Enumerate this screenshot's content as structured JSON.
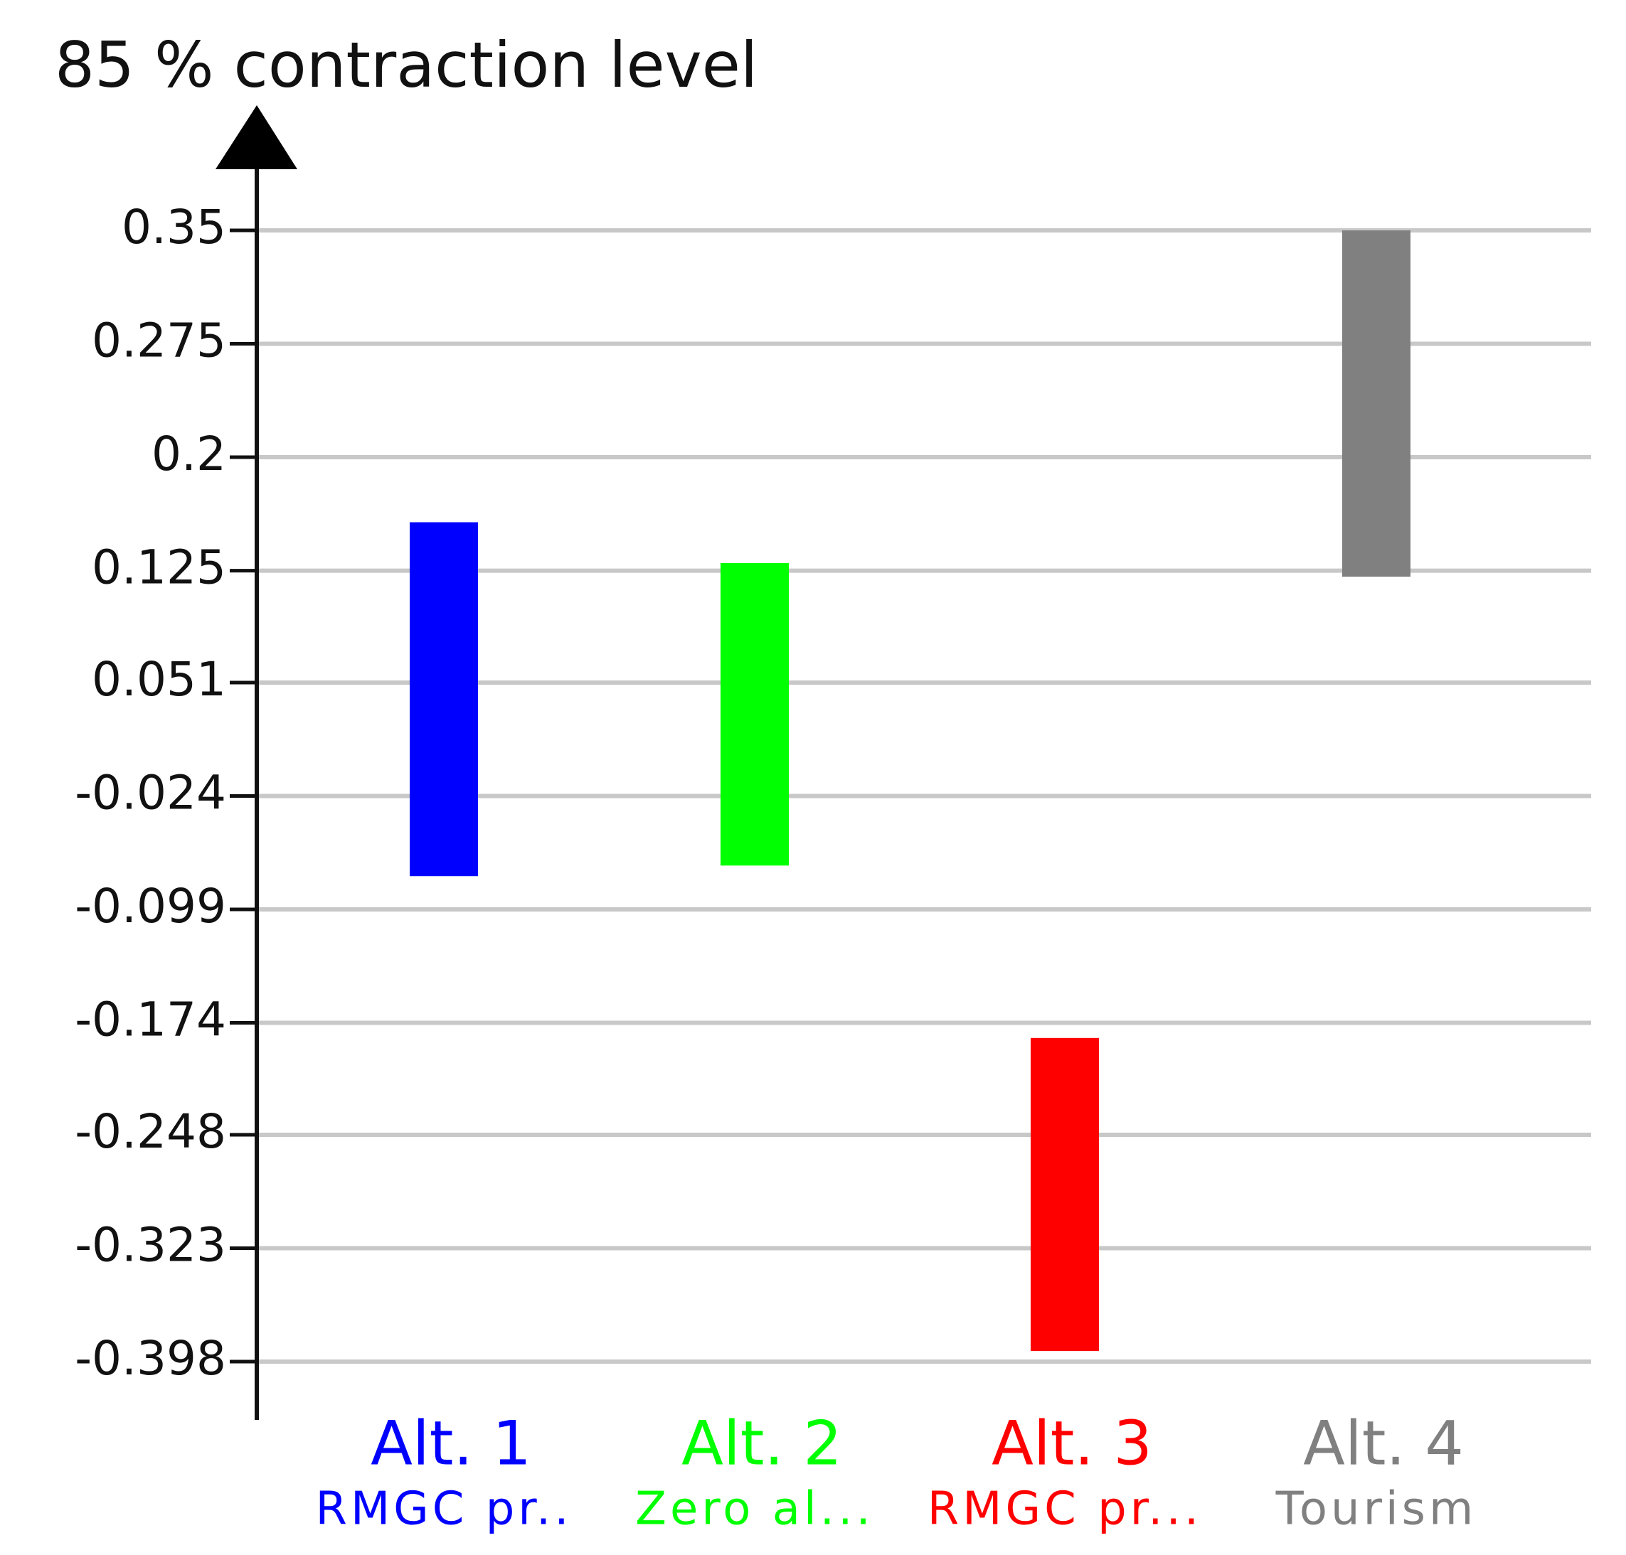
{
  "chart_data": {
    "type": "range-bar",
    "title": "85 % contraction level",
    "categories": [
      "Alt. 1",
      "Alt. 2",
      "Alt. 3",
      "Alt. 4"
    ],
    "sublabels": [
      "RMGC pr..",
      "Zero al...",
      "RMGC pr...",
      "Tourism"
    ],
    "colors": [
      "#0000ff",
      "#00ff00",
      "#ff0000",
      "#808080"
    ],
    "highs": [
      0.157,
      0.13,
      -0.184,
      0.35
    ],
    "lows": [
      -0.077,
      -0.07,
      -0.391,
      0.121
    ],
    "ylim": [
      -0.398,
      0.35
    ],
    "yticks": [
      0.35,
      0.275,
      0.2,
      0.125,
      0.051,
      -0.024,
      -0.099,
      -0.174,
      -0.248,
      -0.323,
      -0.398
    ],
    "grid": true
  }
}
